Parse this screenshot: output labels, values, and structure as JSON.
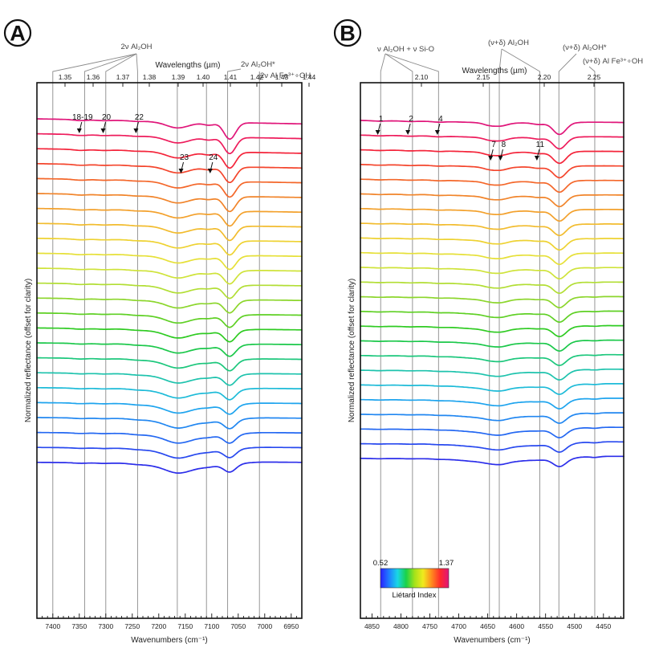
{
  "chart_data": [
    {
      "panel": "A",
      "type": "line",
      "title": "",
      "xlabel": "Wavenumbers (cm⁻¹)",
      "ylabel": "Normalized reflectance (offset for clarity)",
      "top_axis_label": "Wavelengths (µm)",
      "xlim": [
        7430,
        6930
      ],
      "x_reversed": true,
      "x_ticks": [
        7400,
        7350,
        7300,
        7250,
        7200,
        7150,
        7100,
        7050,
        7000,
        6950
      ],
      "top_ticks": [
        "1.35",
        "1.36",
        "1.37",
        "1.38",
        "1.39",
        "1.40",
        "1.41",
        "1.42",
        "1.43",
        "1.44"
      ],
      "grid": false,
      "guide_lines_x": [
        7400,
        7340,
        7300,
        7240,
        7165,
        7110,
        7070,
        7010
      ],
      "assignments": [
        {
          "text": "2ν Al₂OH",
          "targets": [
            7400,
            7340,
            7300,
            7240
          ]
        },
        {
          "text": "2ν Al₂OH*",
          "targets": [
            7070
          ]
        },
        {
          "text": "2ν Al Fe³⁺∘OH",
          "targets": [
            7010
          ]
        }
      ],
      "band_labels": [
        {
          "text": "18-19",
          "x": 7350
        },
        {
          "text": "20",
          "x": 7305
        },
        {
          "text": "22",
          "x": 7243
        },
        {
          "text": "23",
          "x": 7158
        },
        {
          "text": "24",
          "x": 7103
        }
      ],
      "series_count": 24,
      "features": [
        {
          "x": 7348,
          "w": 12,
          "depth": [
            0.1,
            0.06
          ]
        },
        {
          "x": 7305,
          "w": 12,
          "depth": [
            0.06,
            0.05
          ]
        },
        {
          "x": 7243,
          "w": 12,
          "depth": [
            0.05,
            0.06
          ]
        },
        {
          "x": 7165,
          "w": 20,
          "depth": [
            0.55,
            0.45
          ]
        },
        {
          "x": 7105,
          "w": 10,
          "depth": [
            0.25,
            0.05
          ]
        },
        {
          "x": 7066,
          "w": 11,
          "depth": [
            1.8,
            0.8
          ]
        },
        {
          "x": 7155,
          "w": 45,
          "depth": [
            0.15,
            0.6
          ]
        }
      ],
      "slope": [
        0.55,
        0.25
      ],
      "after_level": [
        0.0,
        0.25
      ]
    },
    {
      "panel": "B",
      "type": "line",
      "title": "",
      "xlabel": "Wavenumbers (cm⁻¹)",
      "ylabel": "Normalized reflectance (offset for clarity)",
      "top_axis_label": "Wavelengths (µm)",
      "xlim": [
        4870,
        4415
      ],
      "x_reversed": true,
      "x_ticks": [
        4850,
        4800,
        4750,
        4700,
        4650,
        4600,
        4550,
        4500,
        4450
      ],
      "top_ticks": [
        "2.10",
        "2.15",
        "2.20",
        "2.25"
      ],
      "grid": false,
      "guide_lines_x": [
        4835,
        4780,
        4735,
        4647,
        4630,
        4560,
        4527,
        4465
      ],
      "assignments": [
        {
          "text": "ν Al₂OH + ν Si-O",
          "targets": [
            4835,
            4780,
            4735
          ]
        },
        {
          "text": "(ν+δ) Al₂OH",
          "targets": [
            4630,
            4560
          ]
        },
        {
          "text": "(ν+δ) Al₂OH*",
          "targets": [
            4527
          ]
        },
        {
          "text": "(ν+δ) Al Fe³⁺∘OH",
          "targets": [
            4465
          ]
        }
      ],
      "band_labels": [
        {
          "text": "1",
          "x": 4840
        },
        {
          "text": "2",
          "x": 4788
        },
        {
          "text": "4",
          "x": 4737
        },
        {
          "text": "7",
          "x": 4645
        },
        {
          "text": "8",
          "x": 4628
        },
        {
          "text": "11",
          "x": 4565
        }
      ],
      "series_count": 24,
      "features": [
        {
          "x": 4838,
          "w": 10,
          "depth": [
            0.06,
            0.03
          ]
        },
        {
          "x": 4785,
          "w": 10,
          "depth": [
            0.06,
            0.03
          ]
        },
        {
          "x": 4735,
          "w": 10,
          "depth": [
            0.08,
            0.04
          ]
        },
        {
          "x": 4648,
          "w": 10,
          "depth": [
            0.25,
            0.1
          ]
        },
        {
          "x": 4628,
          "w": 12,
          "depth": [
            0.35,
            0.25
          ]
        },
        {
          "x": 4562,
          "w": 10,
          "depth": [
            0.2,
            0.05
          ]
        },
        {
          "x": 4526,
          "w": 11,
          "depth": [
            1.4,
            0.9
          ]
        },
        {
          "x": 4640,
          "w": 45,
          "depth": [
            0.1,
            0.45
          ]
        },
        {
          "x": 4465,
          "w": 8,
          "depth": [
            0.0,
            0.12
          ]
        }
      ],
      "slope": [
        0.4,
        0.1
      ],
      "after_level": [
        0.15,
        0.35
      ]
    }
  ],
  "colorbar": {
    "label": "Liétard Index",
    "min_label": "0.52",
    "max_label": "1.37",
    "colors": [
      "#2a1fff",
      "#1f7fff",
      "#19d6e6",
      "#19d24a",
      "#a4e21a",
      "#f0ea1e",
      "#ff8a1e",
      "#ff2a2a",
      "#e0167a"
    ]
  },
  "series_colors": [
    "#e0167a",
    "#ee1c5c",
    "#f4243a",
    "#f4452c",
    "#f4672a",
    "#f1842a",
    "#f3a12c",
    "#f2bc2e",
    "#eed232",
    "#e6e038",
    "#cfe33a",
    "#b2de34",
    "#8cd62c",
    "#5fd024",
    "#2fcb22",
    "#1bc84a",
    "#1cc77c",
    "#1ec3ad",
    "#1dbbd8",
    "#1ea4ee",
    "#2187f1",
    "#2468f2",
    "#2849ef",
    "#2c2eea"
  ]
}
